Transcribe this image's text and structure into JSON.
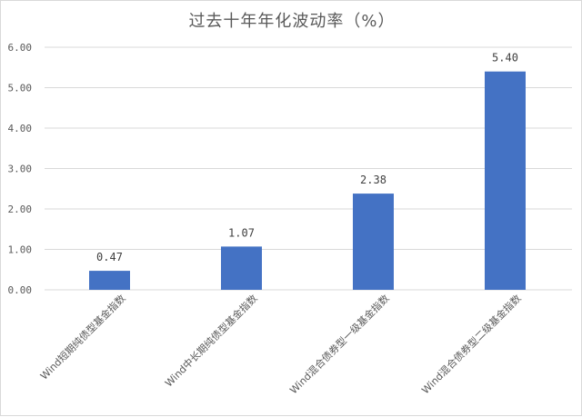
{
  "chart_data": {
    "type": "bar",
    "title": "过去十年年化波动率（%）",
    "categories": [
      "Wind短期纯债型基金指数",
      "Wind中长期纯债型基金指数",
      "Wind混合债券型一级基金指数",
      "Wind混合债券型二级基金指数"
    ],
    "values": [
      0.47,
      1.07,
      2.38,
      5.4
    ],
    "value_labels": [
      "0.47",
      "1.07",
      "2.38",
      "5.40"
    ],
    "yticks": [
      "0.00",
      "1.00",
      "2.00",
      "3.00",
      "4.00",
      "5.00",
      "6.00"
    ],
    "ylim": [
      0,
      6
    ],
    "grid": true,
    "legend": "none",
    "bar_color": "#4472C4",
    "grid_color": "#d9d9d9"
  }
}
